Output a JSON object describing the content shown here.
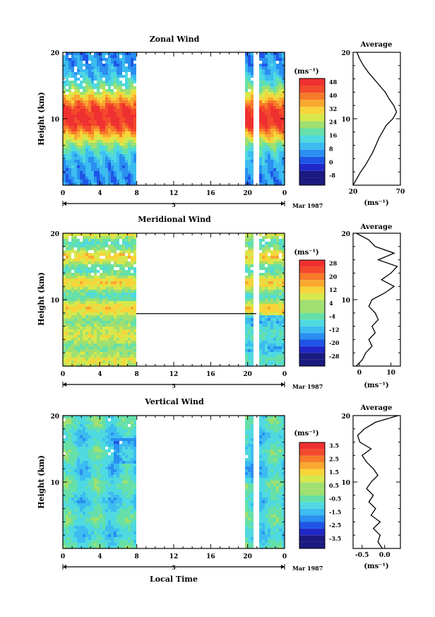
{
  "chart_data": [
    {
      "type": "heatmap",
      "title": "Zonal Wind",
      "ylabel": "Height (km)",
      "ylim": [
        0,
        20
      ],
      "y_ticks": [
        "10",
        "20"
      ],
      "x_ticks": [
        "0",
        "4",
        "8",
        "12",
        "16",
        "20",
        "0"
      ],
      "date_marker": "5",
      "date_label": "Mar 1987",
      "colorbar": {
        "unit": "(ms⁻¹)",
        "tick_labels": [
          "48",
          "40",
          "32",
          "24",
          "16",
          "8",
          "0",
          "-8"
        ],
        "levels": [
          -8,
          -4,
          0,
          4,
          8,
          12,
          16,
          20,
          24,
          28,
          32,
          36,
          40,
          44,
          48,
          52
        ]
      },
      "average_profile": {
        "title": "Average",
        "xlabel": "(ms⁻¹)",
        "x_ticks": [
          "20",
          "70"
        ],
        "xlim": [
          20,
          70
        ],
        "y_ticks": [
          "10",
          "20"
        ],
        "points": [
          [
            20,
            0
          ],
          [
            24,
            1
          ],
          [
            28,
            2
          ],
          [
            33,
            3
          ],
          [
            37,
            4
          ],
          [
            41,
            5
          ],
          [
            44,
            6
          ],
          [
            47,
            7
          ],
          [
            51,
            8
          ],
          [
            55,
            9
          ],
          [
            62,
            10
          ],
          [
            66,
            11
          ],
          [
            63,
            12
          ],
          [
            58,
            13
          ],
          [
            54,
            14
          ],
          [
            48,
            15
          ],
          [
            42,
            16
          ],
          [
            36,
            17
          ],
          [
            31,
            18
          ],
          [
            27,
            19
          ],
          [
            24,
            20
          ]
        ]
      }
    },
    {
      "type": "heatmap",
      "title": "Meridional Wind",
      "ylabel": "Height (km)",
      "ylim": [
        0,
        20
      ],
      "y_ticks": [
        "10",
        "20"
      ],
      "x_ticks": [
        "0",
        "4",
        "8",
        "12",
        "16",
        "20",
        "0"
      ],
      "date_marker": "5",
      "date_label": "Mar 1987",
      "colorbar": {
        "unit": "(ms⁻¹)",
        "tick_labels": [
          "28",
          "20",
          "12",
          "4",
          "-4",
          "-12",
          "-20",
          "-28"
        ],
        "levels": [
          -32,
          -28,
          -24,
          -20,
          -16,
          -12,
          -8,
          -4,
          0,
          4,
          8,
          12,
          16,
          20,
          24,
          28,
          32
        ]
      },
      "average_profile": {
        "title": "Average",
        "xlabel": "(ms⁻¹)",
        "x_ticks": [
          "0",
          "10"
        ],
        "xlim": [
          -2,
          13
        ],
        "y_ticks": [
          "10",
          "20"
        ],
        "points": [
          [
            -1,
            0
          ],
          [
            1,
            1
          ],
          [
            2,
            2
          ],
          [
            4,
            3
          ],
          [
            3,
            4
          ],
          [
            5,
            5
          ],
          [
            4,
            6
          ],
          [
            6,
            7
          ],
          [
            5,
            8
          ],
          [
            3,
            9
          ],
          [
            4,
            10
          ],
          [
            8,
            11
          ],
          [
            11,
            12
          ],
          [
            7,
            13
          ],
          [
            10,
            14
          ],
          [
            12,
            15
          ],
          [
            6,
            16
          ],
          [
            11,
            17
          ],
          [
            5,
            18
          ],
          [
            3,
            19
          ],
          [
            -1,
            20
          ]
        ]
      }
    },
    {
      "type": "heatmap",
      "title": "Vertical Wind",
      "ylabel": "Height (km)",
      "xlabel": "Local Time",
      "ylim": [
        0,
        20
      ],
      "y_ticks": [
        "10",
        "20"
      ],
      "x_ticks": [
        "0",
        "4",
        "8",
        "12",
        "16",
        "20",
        "0"
      ],
      "date_marker": "5",
      "date_label": "Mar 1987",
      "colorbar": {
        "unit": "(ms⁻¹)",
        "tick_labels": [
          "3.5",
          "2.5",
          "1.5",
          "0.5",
          "-0.5",
          "-1.5",
          "-2.5",
          "-3.5"
        ],
        "levels": [
          -4,
          -3.5,
          -3,
          -2.5,
          -2,
          -1.5,
          -1,
          -0.5,
          0,
          0.5,
          1,
          1.5,
          2,
          2.5,
          3,
          3.5,
          4
        ]
      },
      "average_profile": {
        "title": "Average",
        "xlabel": "(ms⁻¹)",
        "x_ticks": [
          "-0.5",
          "0.0"
        ],
        "xlim": [
          -0.7,
          0.35
        ],
        "y_ticks": [
          "10",
          "20"
        ],
        "points": [
          [
            -0.05,
            0
          ],
          [
            -0.15,
            1
          ],
          [
            -0.1,
            2
          ],
          [
            -0.25,
            3
          ],
          [
            -0.1,
            4
          ],
          [
            -0.3,
            5
          ],
          [
            -0.2,
            6
          ],
          [
            -0.35,
            7
          ],
          [
            -0.25,
            8
          ],
          [
            -0.4,
            9
          ],
          [
            -0.3,
            10
          ],
          [
            -0.15,
            11
          ],
          [
            -0.25,
            12
          ],
          [
            -0.4,
            13
          ],
          [
            -0.5,
            14
          ],
          [
            -0.3,
            15
          ],
          [
            -0.55,
            16
          ],
          [
            -0.6,
            17
          ],
          [
            -0.45,
            18
          ],
          [
            -0.2,
            19
          ],
          [
            0.3,
            20
          ]
        ]
      }
    }
  ]
}
